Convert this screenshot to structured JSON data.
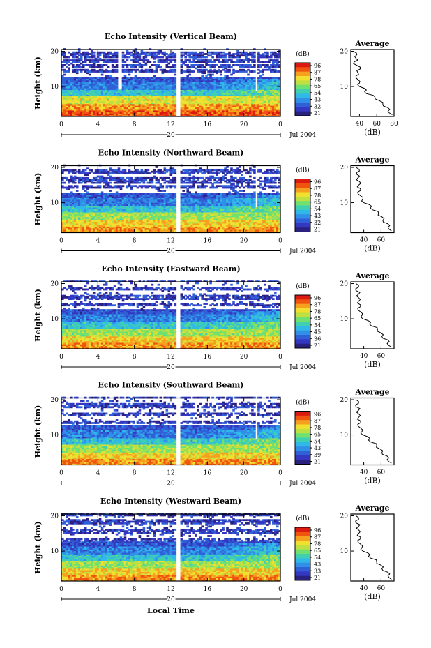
{
  "figure": {
    "x_tick_labels": [
      "0",
      "4",
      "8",
      "12",
      "16",
      "20",
      "0"
    ],
    "date_marker": "20",
    "date_label": "Jul 2004",
    "xlabel": "Local Time",
    "ylabel": "Height (km)",
    "colorbar_unit": "(dB)",
    "colorbar_ticks": [
      "96",
      "87",
      "78",
      "65",
      "54",
      "43",
      "32",
      "21"
    ],
    "colorbar_colors": [
      "#dd1a10",
      "#f05510",
      "#f6a020",
      "#f2e030",
      "#bfe040",
      "#70e070",
      "#40d0b0",
      "#30b8e8",
      "#3090e8",
      "#3060d8",
      "#3438c0",
      "#2a2080"
    ],
    "avg_title": "Average",
    "avg_xlabel": "(dB)"
  },
  "chart_data": [
    {
      "type": "heatmap",
      "title": "Echo Intensity (Vertical Beam)",
      "xlabel": "Local Time",
      "ylabel": "Height (km)",
      "xlim": [
        0,
        24
      ],
      "ylim": [
        1.5,
        20.5
      ],
      "y_ticks": [
        10,
        20
      ],
      "colorbar_ticks": [
        96,
        87,
        78,
        65,
        54,
        43,
        32,
        21
      ],
      "average": {
        "title": "Average",
        "xlabel": "(dB)",
        "x_ticks": [
          "40",
          "60",
          "80"
        ],
        "xlim": [
          30,
          80
        ],
        "ylim": [
          1.5,
          20.5
        ],
        "heights": [
          2,
          3,
          4,
          5,
          6,
          7,
          8,
          9,
          10,
          11,
          12,
          13,
          14,
          15,
          16,
          17,
          18,
          19,
          20
        ],
        "values": [
          78,
          75,
          71,
          68,
          62,
          58,
          50,
          46,
          41,
          39,
          38,
          38,
          36,
          42,
          36,
          34,
          38,
          35,
          34
        ]
      }
    },
    {
      "type": "heatmap",
      "title": "Echo Intensity (Northward Beam)",
      "xlabel": "Local Time",
      "ylabel": "Height (km)",
      "xlim": [
        0,
        24
      ],
      "ylim": [
        1.5,
        20.5
      ],
      "y_ticks": [
        10,
        20
      ],
      "colorbar_ticks": [
        96,
        87,
        78,
        65,
        54,
        43,
        32,
        21
      ],
      "average": {
        "title": "Average",
        "xlabel": "(dB)",
        "x_ticks": [
          "40",
          "60"
        ],
        "xlim": [
          25,
          75
        ],
        "ylim": [
          1.5,
          20.5
        ],
        "heights": [
          2,
          3,
          4,
          5,
          6,
          7,
          8,
          9,
          10,
          11,
          12,
          13,
          14,
          15,
          16,
          17,
          18,
          19,
          20
        ],
        "values": [
          72,
          70,
          66,
          63,
          60,
          57,
          52,
          47,
          41,
          38,
          36,
          35,
          34,
          35,
          34,
          33,
          34,
          33,
          32
        ]
      }
    },
    {
      "type": "heatmap",
      "title": "Echo Intensity (Eastward Beam)",
      "xlabel": "Local Time",
      "ylabel": "Height (km)",
      "xlim": [
        0,
        24
      ],
      "ylim": [
        1.5,
        20.5
      ],
      "y_ticks": [
        10,
        20
      ],
      "colorbar_ticks": [
        96,
        87,
        78,
        65,
        54,
        45,
        36,
        21
      ],
      "average": {
        "title": "Average",
        "xlabel": "(dB)",
        "x_ticks": [
          "40",
          "60"
        ],
        "xlim": [
          25,
          75
        ],
        "ylim": [
          1.5,
          20.5
        ],
        "heights": [
          2,
          3,
          4,
          5,
          6,
          7,
          8,
          9,
          10,
          11,
          12,
          13,
          14,
          15,
          16,
          17,
          18,
          19,
          20
        ],
        "values": [
          72,
          69,
          66,
          62,
          59,
          56,
          51,
          46,
          40,
          37,
          36,
          35,
          34,
          35,
          33,
          34,
          33,
          32,
          32
        ]
      }
    },
    {
      "type": "heatmap",
      "title": "Echo Intensity (Southward Beam)",
      "xlabel": "Local Time",
      "ylabel": "Height (km)",
      "xlim": [
        0,
        24
      ],
      "ylim": [
        1.5,
        20.5
      ],
      "y_ticks": [
        10,
        20
      ],
      "colorbar_ticks": [
        96,
        87,
        78,
        65,
        54,
        43,
        39,
        21
      ],
      "average": {
        "title": "Average",
        "xlabel": "(dB)",
        "x_ticks": [
          "40",
          "60"
        ],
        "xlim": [
          25,
          75
        ],
        "ylim": [
          1.5,
          20.5
        ],
        "heights": [
          2,
          3,
          4,
          5,
          6,
          7,
          8,
          9,
          10,
          11,
          12,
          13,
          14,
          15,
          16,
          17,
          18,
          19,
          20
        ],
        "values": [
          72,
          69,
          65,
          62,
          58,
          55,
          50,
          45,
          40,
          37,
          36,
          35,
          34,
          35,
          33,
          34,
          33,
          32,
          32
        ]
      }
    },
    {
      "type": "heatmap",
      "title": "Echo Intensity (Westward Beam)",
      "xlabel": "Local Time",
      "ylabel": "Height (km)",
      "xlim": [
        0,
        24
      ],
      "ylim": [
        1.5,
        20.5
      ],
      "y_ticks": [
        10,
        20
      ],
      "colorbar_ticks": [
        96,
        87,
        78,
        65,
        54,
        43,
        33,
        21
      ],
      "average": {
        "title": "Average",
        "xlabel": "(dB)",
        "x_ticks": [
          "40",
          "60"
        ],
        "xlim": [
          25,
          75
        ],
        "ylim": [
          1.5,
          20.5
        ],
        "heights": [
          2,
          3,
          4,
          5,
          6,
          7,
          8,
          9,
          10,
          11,
          12,
          13,
          14,
          15,
          16,
          17,
          18,
          19,
          20
        ],
        "values": [
          72,
          70,
          66,
          62,
          59,
          55,
          50,
          45,
          40,
          37,
          36,
          35,
          34,
          35,
          33,
          34,
          33,
          32,
          32
        ]
      }
    }
  ]
}
